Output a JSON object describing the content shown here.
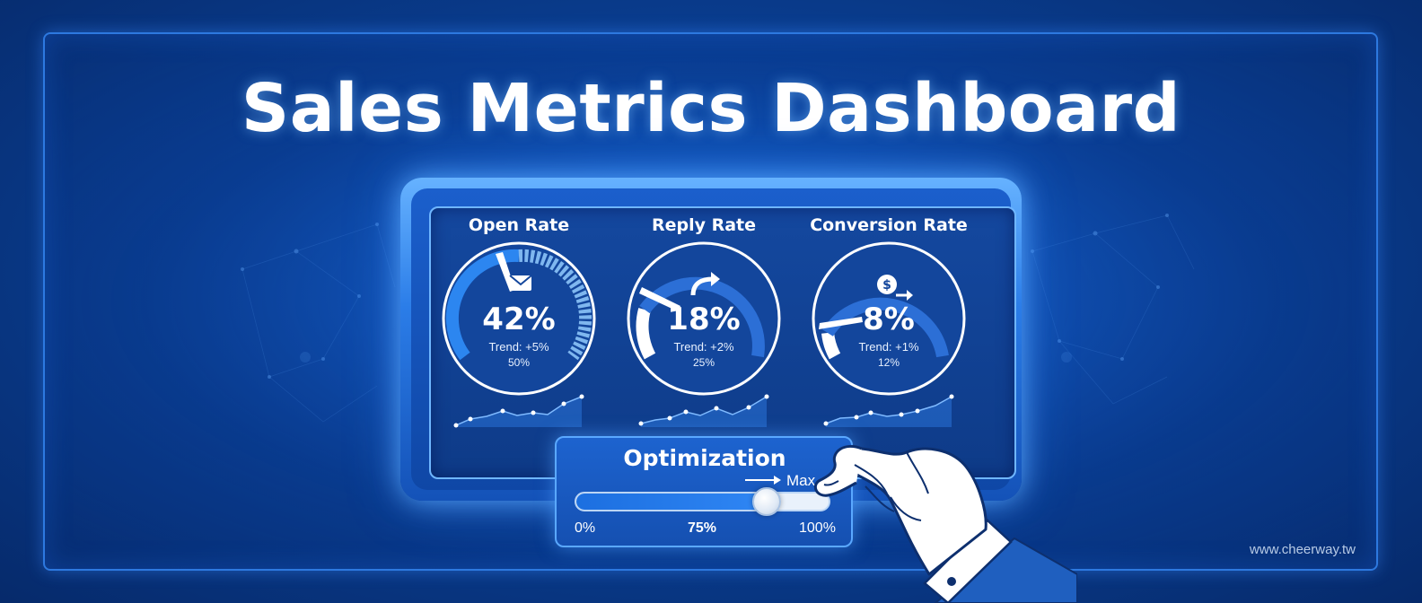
{
  "page": {
    "title": "Sales Metrics Dashboard",
    "watermark": "www.cheerway.tw"
  },
  "metrics": [
    {
      "label": "Open Rate",
      "value": "42%",
      "trend": "Trend: +5%",
      "target": "50%",
      "icon": "envelope-icon",
      "level": 0.42
    },
    {
      "label": "Reply Rate",
      "value": "18%",
      "trend": "Trend: +2%",
      "target": "25%",
      "icon": "reply-arrow-icon",
      "level": 0.18
    },
    {
      "label": "Conversion Rate",
      "value": "8%",
      "trend": "Trend: +1%",
      "target": "12%",
      "icon": "dollar-coin-icon",
      "level": 0.08
    }
  ],
  "optimization": {
    "title": "Optimization",
    "max_label": "Max",
    "min_label": "0%",
    "current_label": "75%",
    "end_label": "100%",
    "level": 0.75
  },
  "colors": {
    "background": "#0a3f93",
    "accent": "#2f86f4",
    "text": "#ffffff"
  }
}
